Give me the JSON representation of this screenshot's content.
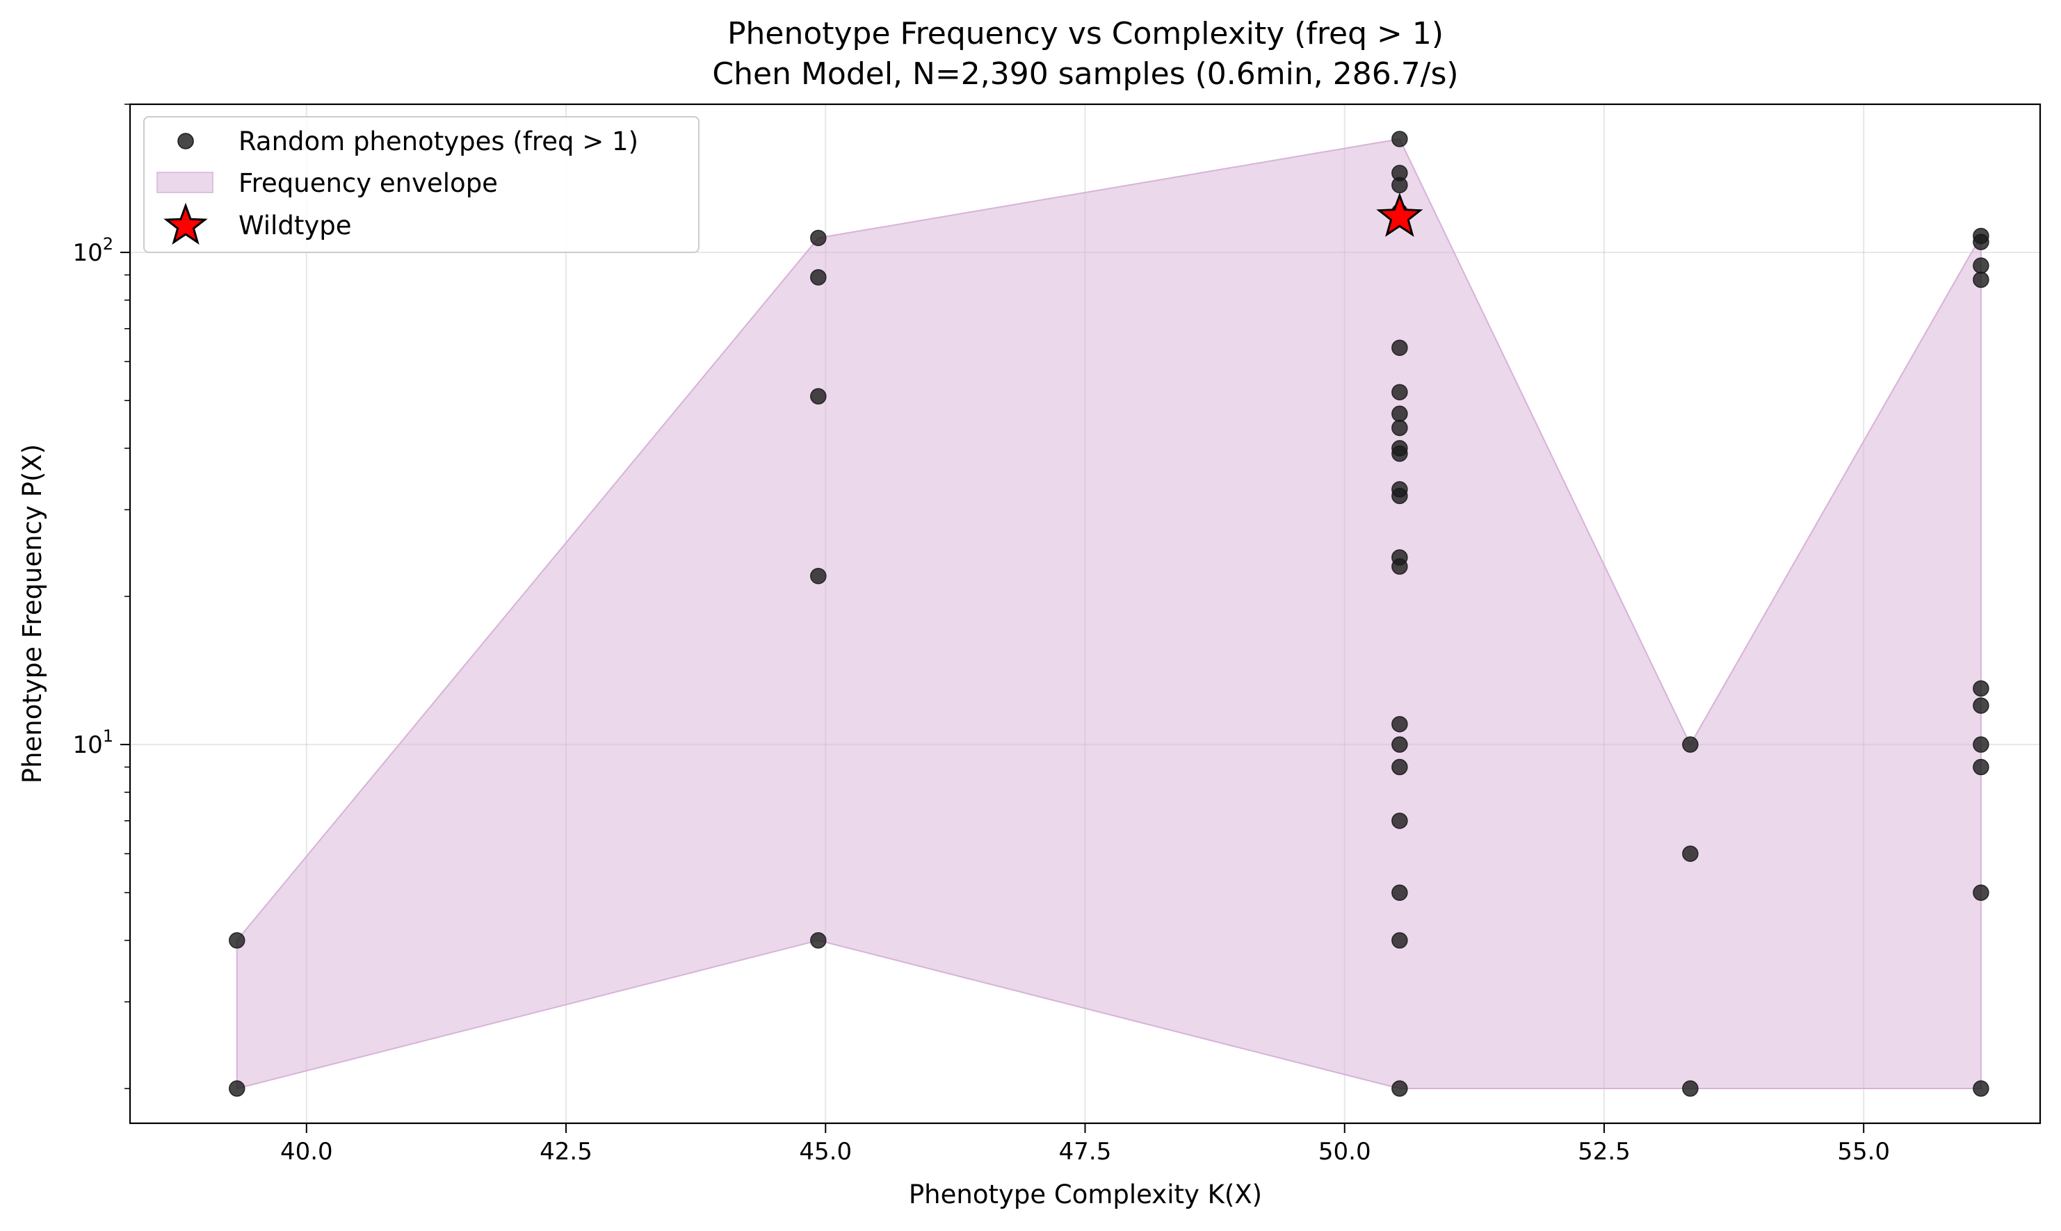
{
  "chart_data": {
    "type": "scatter",
    "title": "Phenotype Frequency vs Complexity (freq > 1)",
    "subtitle": "Chen Model, N=2,390 samples (0.6min, 286.7/s)",
    "xlabel": "Phenotype Complexity K(X)",
    "ylabel": "Phenotype Frequency P(X)",
    "xlim": [
      38.3,
      56.7
    ],
    "ylim": [
      1.7,
      200
    ],
    "yscale": "log",
    "grid": true,
    "legend_position": "top-left",
    "x_ticks": [
      {
        "value": 40.0,
        "label": "40.0"
      },
      {
        "value": 42.5,
        "label": "42.5"
      },
      {
        "value": 45.0,
        "label": "45.0"
      },
      {
        "value": 47.5,
        "label": "47.5"
      },
      {
        "value": 50.0,
        "label": "50.0"
      },
      {
        "value": 52.5,
        "label": "52.5"
      },
      {
        "value": 55.0,
        "label": "55.0"
      }
    ],
    "y_ticks": [
      {
        "value": 10,
        "base": "10",
        "exp": "1"
      },
      {
        "value": 100,
        "base": "10",
        "exp": "2"
      }
    ],
    "series": [
      {
        "name": "Random phenotypes (freq > 1)",
        "color": "#1a1a1a",
        "points": [
          [
            39.33,
            4
          ],
          [
            39.33,
            2
          ],
          [
            44.93,
            107
          ],
          [
            44.93,
            89
          ],
          [
            44.93,
            51
          ],
          [
            44.93,
            22
          ],
          [
            44.93,
            4
          ],
          [
            50.53,
            170
          ],
          [
            50.53,
            145
          ],
          [
            50.53,
            137
          ],
          [
            50.53,
            121
          ],
          [
            50.53,
            120
          ],
          [
            50.53,
            64
          ],
          [
            50.53,
            52
          ],
          [
            50.53,
            47
          ],
          [
            50.53,
            44
          ],
          [
            50.53,
            40
          ],
          [
            50.53,
            39
          ],
          [
            50.53,
            33
          ],
          [
            50.53,
            32
          ],
          [
            50.53,
            24
          ],
          [
            50.53,
            23
          ],
          [
            50.53,
            11
          ],
          [
            50.53,
            10
          ],
          [
            50.53,
            9
          ],
          [
            50.53,
            7
          ],
          [
            50.53,
            5
          ],
          [
            50.53,
            4
          ],
          [
            50.53,
            2
          ],
          [
            53.33,
            10
          ],
          [
            53.33,
            6
          ],
          [
            53.33,
            2
          ],
          [
            56.13,
            108
          ],
          [
            56.13,
            105
          ],
          [
            56.13,
            94
          ],
          [
            56.13,
            88
          ],
          [
            56.13,
            13
          ],
          [
            56.13,
            12
          ],
          [
            56.13,
            10
          ],
          [
            56.13,
            9
          ],
          [
            56.13,
            5
          ],
          [
            56.13,
            2
          ]
        ]
      },
      {
        "name": "Frequency envelope",
        "color": "#d7b2d8",
        "upper": [
          [
            39.33,
            4
          ],
          [
            44.93,
            107
          ],
          [
            50.53,
            170
          ],
          [
            53.33,
            10
          ],
          [
            56.13,
            108
          ]
        ],
        "lower": [
          [
            39.33,
            2
          ],
          [
            44.93,
            4
          ],
          [
            50.53,
            2
          ],
          [
            53.33,
            2
          ],
          [
            56.13,
            2
          ]
        ]
      },
      {
        "name": "Wildtype",
        "color": "#ff0000",
        "points": [
          [
            50.53,
            118
          ]
        ]
      }
    ]
  }
}
